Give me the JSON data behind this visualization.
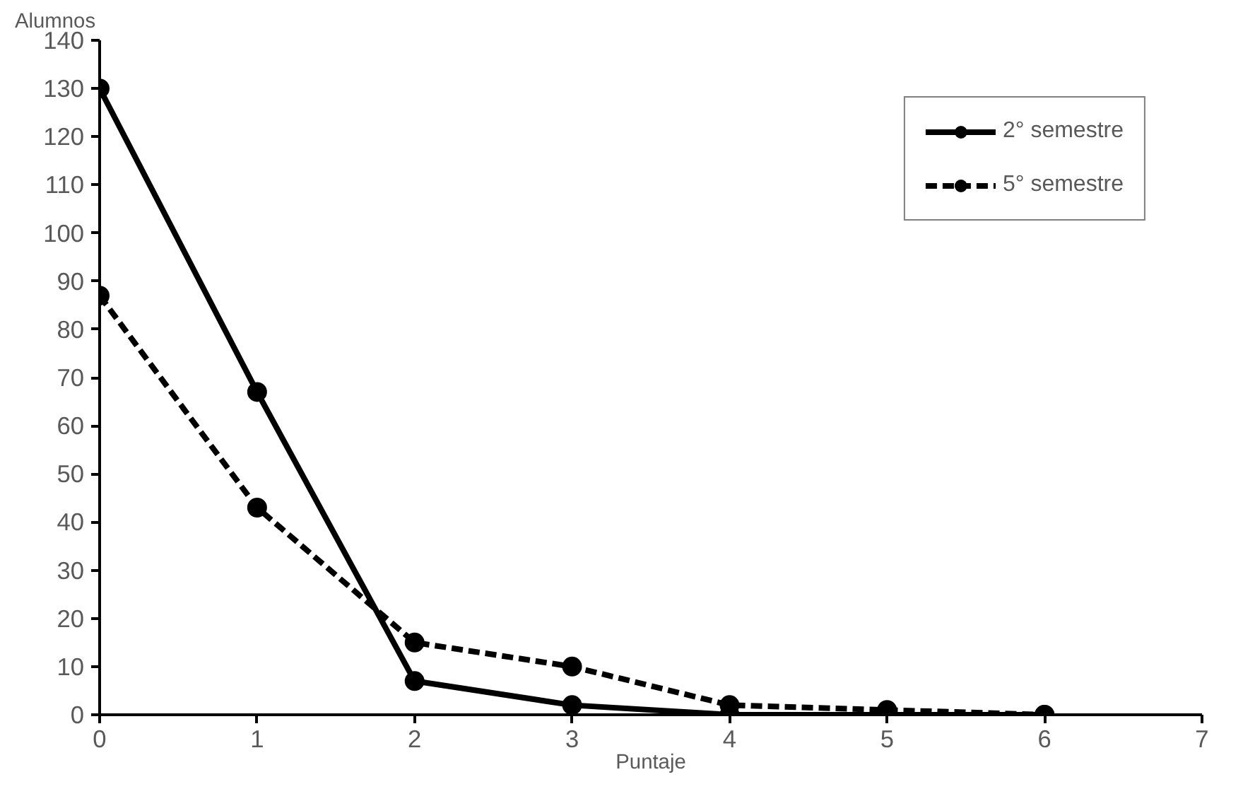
{
  "chart_data": {
    "type": "line",
    "xlabel": "Puntaje",
    "ylabel": "Alumnos",
    "x": [
      0,
      1,
      2,
      3,
      4,
      5,
      6
    ],
    "xlim": [
      0,
      7
    ],
    "xticks": [
      0,
      1,
      2,
      3,
      4,
      5,
      6,
      7
    ],
    "ylim": [
      0,
      140
    ],
    "yticks": [
      0,
      10,
      20,
      30,
      40,
      50,
      60,
      70,
      80,
      90,
      100,
      110,
      120,
      130,
      140
    ],
    "grid": false,
    "legend": "top right",
    "marker": "circle",
    "series": [
      {
        "name": "2° semestre",
        "color": "#000000",
        "line_style": "solid",
        "values": [
          130,
          67,
          7,
          2,
          0,
          0,
          0
        ]
      },
      {
        "name": "5° semestre",
        "color": "#000000",
        "line_style": "dashed",
        "values": [
          87,
          43,
          15,
          10,
          2,
          1,
          0
        ]
      }
    ]
  }
}
